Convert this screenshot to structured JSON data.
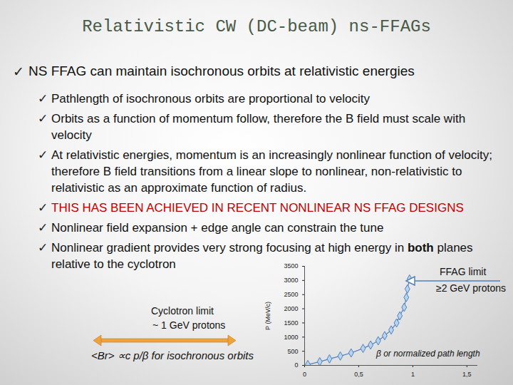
{
  "title": "Relativistic CW (DC-beam) ns-FFAGs",
  "heading": "NS  FFAG can maintain isochronous orbits at relativistic energies",
  "items": [
    {
      "parts": [
        {
          "text": "Pathlength of isochronous orbits are proportional to velocity"
        }
      ]
    },
    {
      "parts": [
        {
          "text": "Orbits as a function of momentum follow, therefore the B field must scale with velocity"
        }
      ]
    },
    {
      "parts": [
        {
          "text": "At relativistic energies, momentum is an increasingly nonlinear function of velocity; therefore B field transitions from a linear slope to nonlinear, non-relativistic to relativistic as an approximate function of radius."
        }
      ]
    },
    {
      "parts": [
        {
          "text": "THIS HAS BEEN ACHIEVED IN RECENT NONLINEAR NS FFAG DESIGNS"
        }
      ],
      "color": "#c00000"
    },
    {
      "parts": [
        {
          "text": "Nonlinear field expansion + edge angle can constrain the tune"
        }
      ]
    },
    {
      "parts": [
        {
          "text": "Nonlinear gradient provides very strong focusing at high energy in "
        },
        {
          "text": "both",
          "bold": true
        },
        {
          "text": " planes relative to the cyclotron"
        }
      ]
    }
  ],
  "chart_data": {
    "type": "line",
    "ylabel": "P (MeV/c)",
    "x": [
      0.03,
      0.14,
      0.23,
      0.33,
      0.43,
      0.54,
      0.61,
      0.68,
      0.74,
      0.8,
      0.85,
      0.88,
      0.92,
      0.94,
      0.95,
      0.97
    ],
    "values": [
      30,
      130,
      230,
      330,
      440,
      600,
      720,
      870,
      1050,
      1250,
      1500,
      1750,
      2050,
      2400,
      2700,
      3050
    ],
    "color": "#4f81bd",
    "marker": "diamond",
    "xlim": [
      0,
      1.6
    ],
    "ylim": [
      0,
      3500
    ],
    "xticks": [
      0,
      {
        "value": 0.5,
        "label": "0,5"
      },
      1,
      {
        "value": 1.5,
        "label": "1,5"
      }
    ],
    "yticks": [
      0,
      500,
      1000,
      1500,
      2000,
      2500,
      3000,
      3500
    ],
    "grid": false,
    "annotations": [
      "FFAG limit",
      "≥2 GeV protons",
      "β or normalized path length",
      "Cyclotron limit",
      "~ 1 GeV protons",
      "<Br> ∝c p/β for isochronous orbits"
    ]
  }
}
